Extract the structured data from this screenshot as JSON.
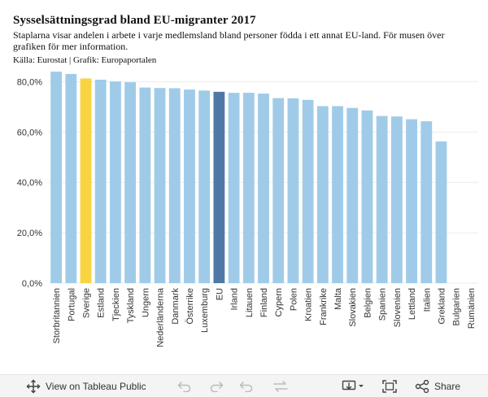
{
  "header": {
    "title": "Sysselsättningsgrad bland EU-migranter 2017",
    "subtitle": "Staplarna visar andelen i arbete i varje medlemsland bland personer födda i ett annat EU-land. För musen över grafiken för mer information.",
    "source": "Källa: Eurostat | Grafik: Europaportalen"
  },
  "chart_data": {
    "type": "bar",
    "ylim": [
      0,
      85
    ],
    "yticks": [
      "0,0%",
      "20,0%",
      "40,0%",
      "60,0%",
      "80,0%"
    ],
    "ytick_values": [
      0,
      20,
      40,
      60,
      80
    ],
    "grid": true,
    "categories": [
      "Storbritannien",
      "Portugal",
      "Sverige",
      "Estland",
      "Tjeckien",
      "Tyskland",
      "Ungern",
      "Nederländerna",
      "Danmark",
      "Österrike",
      "Luxemburg",
      "EU",
      "Irland",
      "Litauen",
      "Finland",
      "Cypern",
      "Polen",
      "Kroatien",
      "Frankrike",
      "Malta",
      "Slovakien",
      "Belgien",
      "Spanien",
      "Slovenien",
      "Lettland",
      "Italien",
      "Grekland",
      "Bulgarien",
      "Rumänien"
    ],
    "values": [
      84.0,
      83.1,
      81.3,
      80.8,
      80.1,
      79.8,
      77.7,
      77.5,
      77.4,
      76.9,
      76.5,
      76.0,
      75.6,
      75.6,
      75.3,
      73.5,
      73.4,
      72.8,
      70.3,
      70.3,
      69.6,
      68.6,
      66.4,
      66.2,
      65.1,
      64.3,
      56.3,
      null,
      null
    ],
    "highlight": {
      "Sverige": "#f8d443",
      "EU": "#4e79a7"
    },
    "bar_color": "#a0cbe8"
  },
  "toolbar": {
    "view_label": "View on Tableau Public",
    "share_label": "Share",
    "icons": [
      "tableau-move-icon",
      "undo-icon",
      "redo-icon",
      "revert-icon",
      "download-icon",
      "fullscreen-icon",
      "share-icon"
    ]
  }
}
